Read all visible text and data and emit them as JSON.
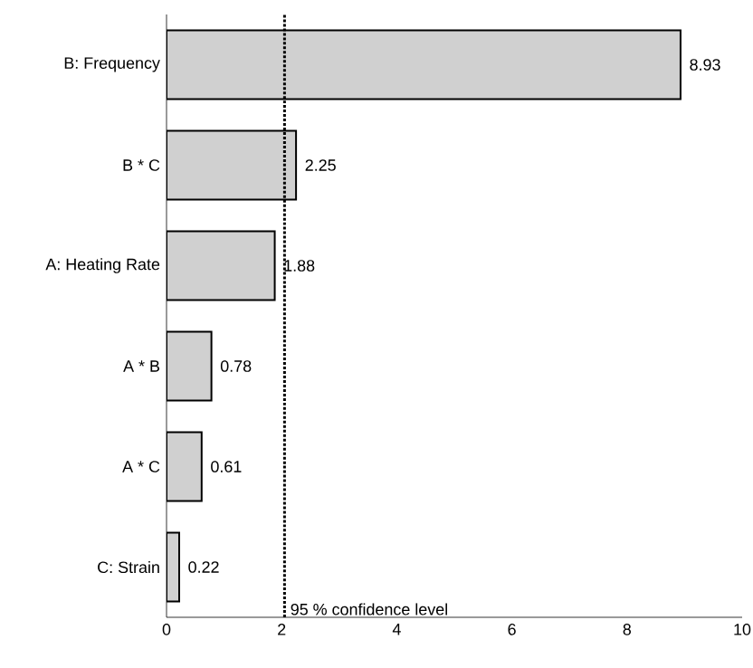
{
  "chart_data": {
    "type": "bar",
    "orientation": "horizontal",
    "categories": [
      "B: Frequency",
      "B * C",
      "A: Heating Rate",
      "A * B",
      "A * C",
      "C: Strain"
    ],
    "values": [
      8.93,
      2.25,
      1.88,
      0.78,
      0.61,
      0.22
    ],
    "color": "#d0d0d0",
    "xlim": [
      0,
      10
    ],
    "xticks": [
      0,
      2,
      4,
      6,
      8,
      10
    ],
    "data_labels": true,
    "ref_lines": [
      {
        "axis": "x",
        "value": 2.05,
        "label": "95 % confidence level",
        "line_style": "dotted"
      }
    ]
  }
}
